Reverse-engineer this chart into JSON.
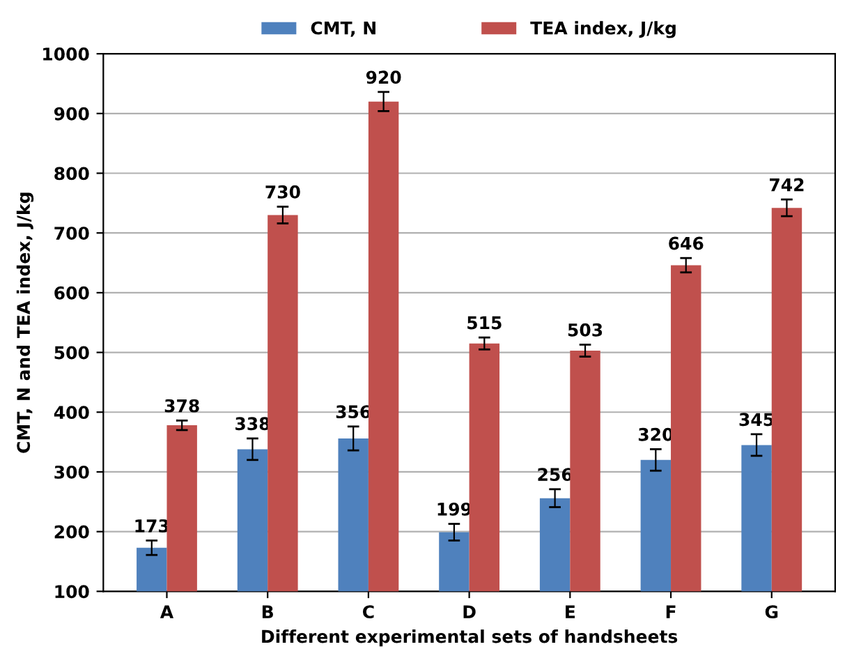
{
  "chart_data": {
    "type": "bar",
    "xlabel": "Different experimental sets of handsheets",
    "ylabel": "CMT, N and TEA index, J/kg",
    "categories": [
      "A",
      "B",
      "C",
      "D",
      "E",
      "F",
      "G"
    ],
    "series": [
      {
        "name": "CMT, N",
        "color": "#4f81bd",
        "values": [
          173,
          338,
          356,
          199,
          256,
          320,
          345
        ],
        "errors": [
          12,
          18,
          20,
          14,
          15,
          18,
          18
        ]
      },
      {
        "name": "TEA index, J/kg",
        "color": "#c0504d",
        "values": [
          378,
          730,
          920,
          515,
          503,
          646,
          742
        ],
        "errors": [
          8,
          14,
          16,
          10,
          10,
          12,
          14
        ]
      }
    ],
    "data_labels": true,
    "ylim": [
      100,
      1000
    ],
    "yticks": [
      100,
      200,
      300,
      400,
      500,
      600,
      700,
      800,
      900,
      1000
    ],
    "grid": "y",
    "legend": "top"
  }
}
